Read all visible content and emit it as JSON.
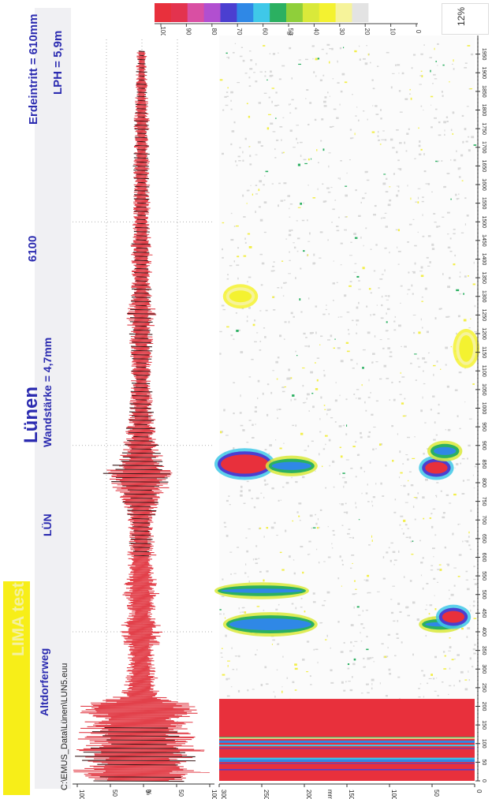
{
  "header": {
    "title": "LIMA test",
    "location": "Lünen",
    "street": "Altdorferweg",
    "code": "LÜN",
    "wall": "Wandstärke = 4,7mm",
    "number": "6100",
    "cover": "Erdeintritt = 610mm",
    "lph": "LPH = 5,9m",
    "path": "C:\\EMUS_Data\\Lünen\\LUN5.euu",
    "percent": "12%"
  },
  "scale": {
    "colors": [
      "#e8303c",
      "#e3334e",
      "#d94fa3",
      "#b14fd0",
      "#4b3fd0",
      "#2f88e6",
      "#3fc8e8",
      "#2bb061",
      "#8fcf3a",
      "#d9e93a",
      "#f4f230",
      "#f6f39a",
      "#e3e3e3",
      "#ffffff",
      "#ffffff",
      "#ffffff"
    ],
    "labels": [
      "100",
      "90",
      "80",
      "70",
      "60",
      "50",
      "40",
      "30",
      "20",
      "10",
      "0"
    ],
    "unit": "%"
  },
  "chart_data": {
    "type": "line",
    "x_ticks": [
      "0",
      "50",
      "100",
      "150",
      "200",
      "250",
      "300",
      "350",
      "400",
      "450",
      "500",
      "550",
      "600",
      "650",
      "700",
      "750",
      "800",
      "850",
      "900",
      "950",
      "1000",
      "1050",
      "1100",
      "1150",
      "1200",
      "1250",
      "1300",
      "1350",
      "1400",
      "1450",
      "1500",
      "1550",
      "1600",
      "1650",
      "1700",
      "1750",
      "1800",
      "1850",
      "1900",
      "1950"
    ],
    "xlim": [
      0,
      2000
    ],
    "signal": {
      "ylabel": "%",
      "y_ticks": [
        "100",
        "50",
        "0",
        "50",
        "100"
      ],
      "ylim": [
        -100,
        100
      ],
      "envelope": [
        [
          0,
          95
        ],
        [
          20,
          100
        ],
        [
          40,
          98
        ],
        [
          60,
          97
        ],
        [
          80,
          96
        ],
        [
          100,
          95
        ],
        [
          120,
          96
        ],
        [
          140,
          98
        ],
        [
          160,
          95
        ],
        [
          180,
          92
        ],
        [
          200,
          88
        ],
        [
          215,
          70
        ],
        [
          225,
          40
        ],
        [
          240,
          30
        ],
        [
          260,
          26
        ],
        [
          280,
          24
        ],
        [
          300,
          22
        ],
        [
          320,
          20
        ],
        [
          340,
          22
        ],
        [
          360,
          24
        ],
        [
          380,
          30
        ],
        [
          400,
          40
        ],
        [
          420,
          30
        ],
        [
          440,
          22
        ],
        [
          460,
          20
        ],
        [
          480,
          25
        ],
        [
          500,
          30
        ],
        [
          520,
          28
        ],
        [
          540,
          22
        ],
        [
          560,
          18
        ],
        [
          580,
          20
        ],
        [
          600,
          24
        ],
        [
          620,
          20
        ],
        [
          640,
          18
        ],
        [
          660,
          20
        ],
        [
          680,
          22
        ],
        [
          700,
          20
        ],
        [
          720,
          24
        ],
        [
          740,
          28
        ],
        [
          760,
          32
        ],
        [
          780,
          38
        ],
        [
          800,
          50
        ],
        [
          815,
          62
        ],
        [
          830,
          55
        ],
        [
          850,
          40
        ],
        [
          870,
          32
        ],
        [
          890,
          28
        ],
        [
          910,
          26
        ],
        [
          930,
          24
        ],
        [
          950,
          22
        ],
        [
          970,
          20
        ],
        [
          1000,
          18
        ],
        [
          1030,
          17
        ],
        [
          1060,
          16
        ],
        [
          1090,
          15
        ],
        [
          1120,
          16
        ],
        [
          1150,
          17
        ],
        [
          1180,
          18
        ],
        [
          1210,
          20
        ],
        [
          1240,
          22
        ],
        [
          1270,
          20
        ],
        [
          1300,
          17
        ],
        [
          1330,
          15
        ],
        [
          1360,
          16
        ],
        [
          1400,
          15
        ],
        [
          1440,
          16
        ],
        [
          1480,
          14
        ],
        [
          1520,
          12
        ],
        [
          1560,
          13
        ],
        [
          1600,
          12
        ],
        [
          1640,
          13
        ],
        [
          1680,
          12
        ],
        [
          1720,
          11
        ],
        [
          1760,
          12
        ],
        [
          1800,
          11
        ],
        [
          1840,
          10
        ],
        [
          1880,
          9
        ],
        [
          1920,
          8
        ],
        [
          1960,
          7
        ]
      ]
    },
    "map": {
      "ylabel": "mm²",
      "y_ticks": [
        "300",
        "250",
        "200",
        "150",
        "100",
        "50",
        "0"
      ],
      "ylim": [
        0,
        300
      ],
      "blobs": [
        {
          "x": [
            0,
            220
          ],
          "y": [
            0,
            300
          ],
          "level": "high"
        },
        {
          "x": [
            400,
            440
          ],
          "y": [
            190,
            290
          ],
          "level": "mid"
        },
        {
          "x": [
            410,
            430
          ],
          "y": [
            20,
            60
          ],
          "level": "mid"
        },
        {
          "x": [
            420,
            460
          ],
          "y": [
            10,
            40
          ],
          "level": "high"
        },
        {
          "x": [
            500,
            520
          ],
          "y": [
            200,
            300
          ],
          "level": "mid"
        },
        {
          "x": [
            820,
            880
          ],
          "y": [
            240,
            300
          ],
          "level": "high"
        },
        {
          "x": [
            830,
            860
          ],
          "y": [
            190,
            240
          ],
          "level": "mid"
        },
        {
          "x": [
            820,
            860
          ],
          "y": [
            30,
            60
          ],
          "level": "high"
        },
        {
          "x": [
            870,
            900
          ],
          "y": [
            20,
            50
          ],
          "level": "mid"
        },
        {
          "x": [
            1120,
            1200
          ],
          "y": [
            0,
            20
          ],
          "level": "low"
        },
        {
          "x": [
            1280,
            1320
          ],
          "y": [
            260,
            290
          ],
          "level": "low"
        }
      ]
    }
  }
}
